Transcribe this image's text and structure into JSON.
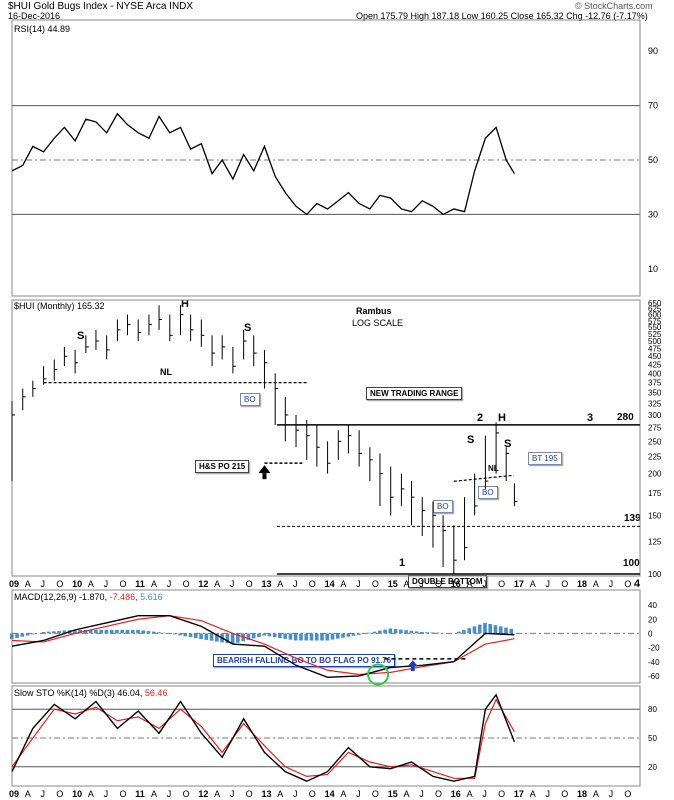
{
  "header": {
    "title": "$HUI Gold Bugs Index - NYSE Arca INDX",
    "date": "16-Dec-2016",
    "quote": "Open 175.79  High 187.18  Low 160.25  Close 165.32  Chg -12.76 (-7.17%)",
    "watermark": "© StockCharts.com"
  },
  "rsi_panel": {
    "legend": "RSI(14) 44.89",
    "line_color": "#000000"
  },
  "price_panel": {
    "legend": "$HUI (Monthly) 165.32",
    "author": "Rambus",
    "scale_note": "LOG SCALE",
    "color_bars": "#000000"
  },
  "macd_panel": {
    "legend_prefix": "MACD(12,26,9)",
    "value_macd": "-1.870,",
    "value_signal": "-7.486,",
    "value_hist": "5.616",
    "macd_color": "#000000",
    "signal_color": "#e8201e",
    "hist_color": "#4a8ec9"
  },
  "sto_panel": {
    "legend_prefix": "Slow STO %K(14) %D(3)",
    "value_k": "46.04,",
    "value_d": "56.46",
    "k_color": "#000000",
    "d_color": "#e8201e"
  },
  "annotations": {
    "s_left": "S",
    "h_top": "H",
    "s_right": "S",
    "nl_left": "NL",
    "bo_left": "BO",
    "hs_po": "H&S PO 215",
    "new_range": "NEW TRADING RANGE",
    "num2": "2",
    "h_right": "H",
    "num3": "3",
    "level280": "280",
    "s_r1": "S",
    "s_r2": "S",
    "nl_right": "NL",
    "bt195": "BT 195",
    "bo_right": "BO",
    "bo_mid": "BO",
    "level139": "139",
    "num1": "1",
    "level100": "100",
    "double_bottom": "DOUBLE BOTTOM",
    "num4": "4",
    "flag_po": "BEARISH FALLING BO TO BO  FLAG PO 91.76"
  },
  "chart_data": [
    {
      "type": "line",
      "title": "RSI(14) 44.89",
      "ylim": [
        0,
        100
      ],
      "y_ticks": [
        "10",
        "30",
        "50",
        "70",
        "90"
      ],
      "series": [
        {
          "name": "RSI(14)",
          "x": [
            2009.0,
            2009.17,
            2009.33,
            2009.5,
            2009.67,
            2009.83,
            2010.0,
            2010.17,
            2010.33,
            2010.5,
            2010.67,
            2010.83,
            2011.0,
            2011.17,
            2011.33,
            2011.5,
            2011.67,
            2011.83,
            2012.0,
            2012.17,
            2012.33,
            2012.5,
            2012.67,
            2012.83,
            2013.0,
            2013.17,
            2013.33,
            2013.5,
            2013.67,
            2013.83,
            2014.0,
            2014.17,
            2014.33,
            2014.5,
            2014.67,
            2014.83,
            2015.0,
            2015.17,
            2015.33,
            2015.5,
            2015.67,
            2015.83,
            2016.0,
            2016.17,
            2016.33,
            2016.5,
            2016.67,
            2016.83,
            2016.96
          ],
          "values": [
            46,
            48,
            55,
            53,
            58,
            62,
            57,
            65,
            64,
            60,
            67,
            63,
            60,
            58,
            66,
            60,
            62,
            54,
            56,
            45,
            50,
            43,
            52,
            46,
            55,
            44,
            38,
            33,
            30,
            34,
            32,
            35,
            38,
            34,
            32,
            37,
            36,
            32,
            31,
            35,
            33,
            30,
            32,
            31,
            46,
            58,
            62,
            50,
            45
          ]
        }
      ]
    },
    {
      "type": "bar",
      "title": "$HUI (Monthly) 165.32",
      "scale": "log",
      "ylim": [
        100,
        650
      ],
      "y_ticks": [
        "100",
        "125",
        "150",
        "175",
        "200",
        "225",
        "250",
        "275",
        "300",
        "325",
        "350",
        "375",
        "400",
        "425",
        "450",
        "475",
        "500",
        "525",
        "550",
        "575",
        "600",
        "625",
        "650"
      ],
      "x_labels": [
        "09",
        "A",
        "J",
        "O",
        "10",
        "A",
        "J",
        "O",
        "11",
        "A",
        "J",
        "O",
        "12",
        "A",
        "J",
        "O",
        "13",
        "A",
        "J",
        "O",
        "14",
        "A",
        "J",
        "O",
        "15",
        "A",
        "J",
        "O",
        "16",
        "A",
        "J",
        "O",
        "17",
        "A",
        "J",
        "O",
        "18",
        "A",
        "J",
        "O"
      ],
      "series": [
        {
          "name": "$HUI",
          "x": [
            2009.0,
            2009.17,
            2009.33,
            2009.5,
            2009.67,
            2009.83,
            2010.0,
            2010.17,
            2010.33,
            2010.5,
            2010.67,
            2010.83,
            2011.0,
            2011.17,
            2011.33,
            2011.5,
            2011.67,
            2011.83,
            2012.0,
            2012.17,
            2012.33,
            2012.5,
            2012.67,
            2012.83,
            2013.0,
            2013.17,
            2013.33,
            2013.5,
            2013.67,
            2013.83,
            2014.0,
            2014.17,
            2014.33,
            2014.5,
            2014.67,
            2014.83,
            2015.0,
            2015.17,
            2015.33,
            2015.5,
            2015.67,
            2015.83,
            2016.0,
            2016.17,
            2016.33,
            2016.5,
            2016.67,
            2016.83,
            2016.96
          ],
          "close": [
            300,
            340,
            360,
            385,
            410,
            450,
            430,
            480,
            500,
            470,
            540,
            560,
            530,
            560,
            580,
            520,
            600,
            540,
            520,
            460,
            480,
            420,
            500,
            460,
            430,
            360,
            300,
            270,
            260,
            240,
            215,
            250,
            260,
            230,
            220,
            200,
            170,
            180,
            170,
            155,
            150,
            135,
            110,
            120,
            160,
            190,
            265,
            230,
            165
          ],
          "high": [
            330,
            360,
            380,
            420,
            440,
            480,
            470,
            520,
            540,
            520,
            580,
            600,
            580,
            600,
            640,
            600,
            640,
            600,
            580,
            520,
            520,
            480,
            540,
            520,
            470,
            400,
            340,
            300,
            290,
            280,
            250,
            270,
            280,
            270,
            240,
            230,
            210,
            200,
            190,
            170,
            165,
            150,
            140,
            170,
            200,
            260,
            285,
            240,
            187
          ],
          "low": [
            190,
            310,
            340,
            370,
            380,
            420,
            400,
            460,
            470,
            440,
            500,
            520,
            500,
            520,
            540,
            500,
            520,
            500,
            480,
            420,
            440,
            400,
            440,
            420,
            360,
            280,
            250,
            240,
            220,
            210,
            200,
            220,
            230,
            210,
            190,
            160,
            150,
            160,
            140,
            130,
            120,
            105,
            100,
            110,
            150,
            180,
            200,
            190,
            160
          ]
        }
      ],
      "levels": [
        {
          "label": "NL",
          "value": 375
        },
        {
          "label": "280",
          "value": 280
        },
        {
          "label": "139",
          "value": 139
        },
        {
          "label": "100",
          "value": 100
        },
        {
          "label": "H&S PO 215",
          "value": 215
        },
        {
          "label": "BT 195",
          "value": 195
        }
      ]
    },
    {
      "type": "line",
      "title": "MACD(12,26,9)",
      "ylim": [
        -70,
        50
      ],
      "y_ticks": [
        "40",
        "20",
        "0",
        "-20",
        "-40",
        "-60"
      ],
      "series": [
        {
          "name": "MACD",
          "x": [
            2009.0,
            2009.5,
            2010.0,
            2010.5,
            2011.0,
            2011.5,
            2012.0,
            2012.5,
            2013.0,
            2013.5,
            2014.0,
            2014.5,
            2015.0,
            2015.5,
            2016.0,
            2016.5,
            2016.96
          ],
          "values": [
            -18,
            -10,
            5,
            15,
            25,
            25,
            10,
            -15,
            -18,
            -45,
            -62,
            -60,
            -48,
            -45,
            -40,
            0,
            -1.87
          ]
        },
        {
          "name": "Signal",
          "x": [
            2009.0,
            2009.5,
            2010.0,
            2010.5,
            2011.0,
            2011.5,
            2012.0,
            2012.5,
            2013.0,
            2013.5,
            2014.0,
            2014.5,
            2015.0,
            2015.5,
            2016.0,
            2016.5,
            2016.96
          ],
          "values": [
            -10,
            -12,
            0,
            10,
            20,
            25,
            18,
            0,
            -15,
            -35,
            -52,
            -58,
            -55,
            -47,
            -40,
            -15,
            -7.486
          ]
        },
        {
          "name": "Histogram",
          "x": [
            2009.0,
            2009.5,
            2010.0,
            2010.5,
            2011.0,
            2011.5,
            2012.0,
            2012.5,
            2013.0,
            2013.5,
            2014.0,
            2014.5,
            2015.0,
            2015.5,
            2016.0,
            2016.5,
            2016.96
          ],
          "values": [
            -8,
            2,
            5,
            5,
            5,
            0,
            -8,
            -15,
            -3,
            -10,
            -10,
            -2,
            7,
            2,
            0,
            15,
            5.616
          ]
        }
      ]
    },
    {
      "type": "line",
      "title": "Slow STO %K(14) %D(3)",
      "ylim": [
        0,
        100
      ],
      "y_ticks": [
        "80",
        "50",
        "20"
      ],
      "series": [
        {
          "name": "%K",
          "x": [
            2009.0,
            2009.33,
            2009.67,
            2010.0,
            2010.33,
            2010.67,
            2011.0,
            2011.33,
            2011.67,
            2012.0,
            2012.33,
            2012.67,
            2013.0,
            2013.33,
            2013.67,
            2014.0,
            2014.33,
            2014.67,
            2015.0,
            2015.33,
            2015.67,
            2016.0,
            2016.33,
            2016.5,
            2016.67,
            2016.96
          ],
          "values": [
            15,
            60,
            85,
            70,
            88,
            60,
            78,
            55,
            88,
            55,
            30,
            70,
            35,
            15,
            5,
            15,
            40,
            20,
            18,
            25,
            10,
            5,
            10,
            80,
            95,
            46.04
          ]
        },
        {
          "name": "%D",
          "x": [
            2009.0,
            2009.33,
            2009.67,
            2010.0,
            2010.33,
            2010.67,
            2011.0,
            2011.33,
            2011.67,
            2012.0,
            2012.33,
            2012.67,
            2013.0,
            2013.33,
            2013.67,
            2014.0,
            2014.33,
            2014.67,
            2015.0,
            2015.33,
            2015.67,
            2016.0,
            2016.33,
            2016.5,
            2016.67,
            2016.96
          ],
          "values": [
            20,
            50,
            80,
            75,
            82,
            68,
            72,
            60,
            80,
            62,
            35,
            65,
            42,
            20,
            10,
            12,
            35,
            25,
            20,
            22,
            15,
            8,
            8,
            65,
            90,
            56.46
          ]
        }
      ]
    }
  ]
}
